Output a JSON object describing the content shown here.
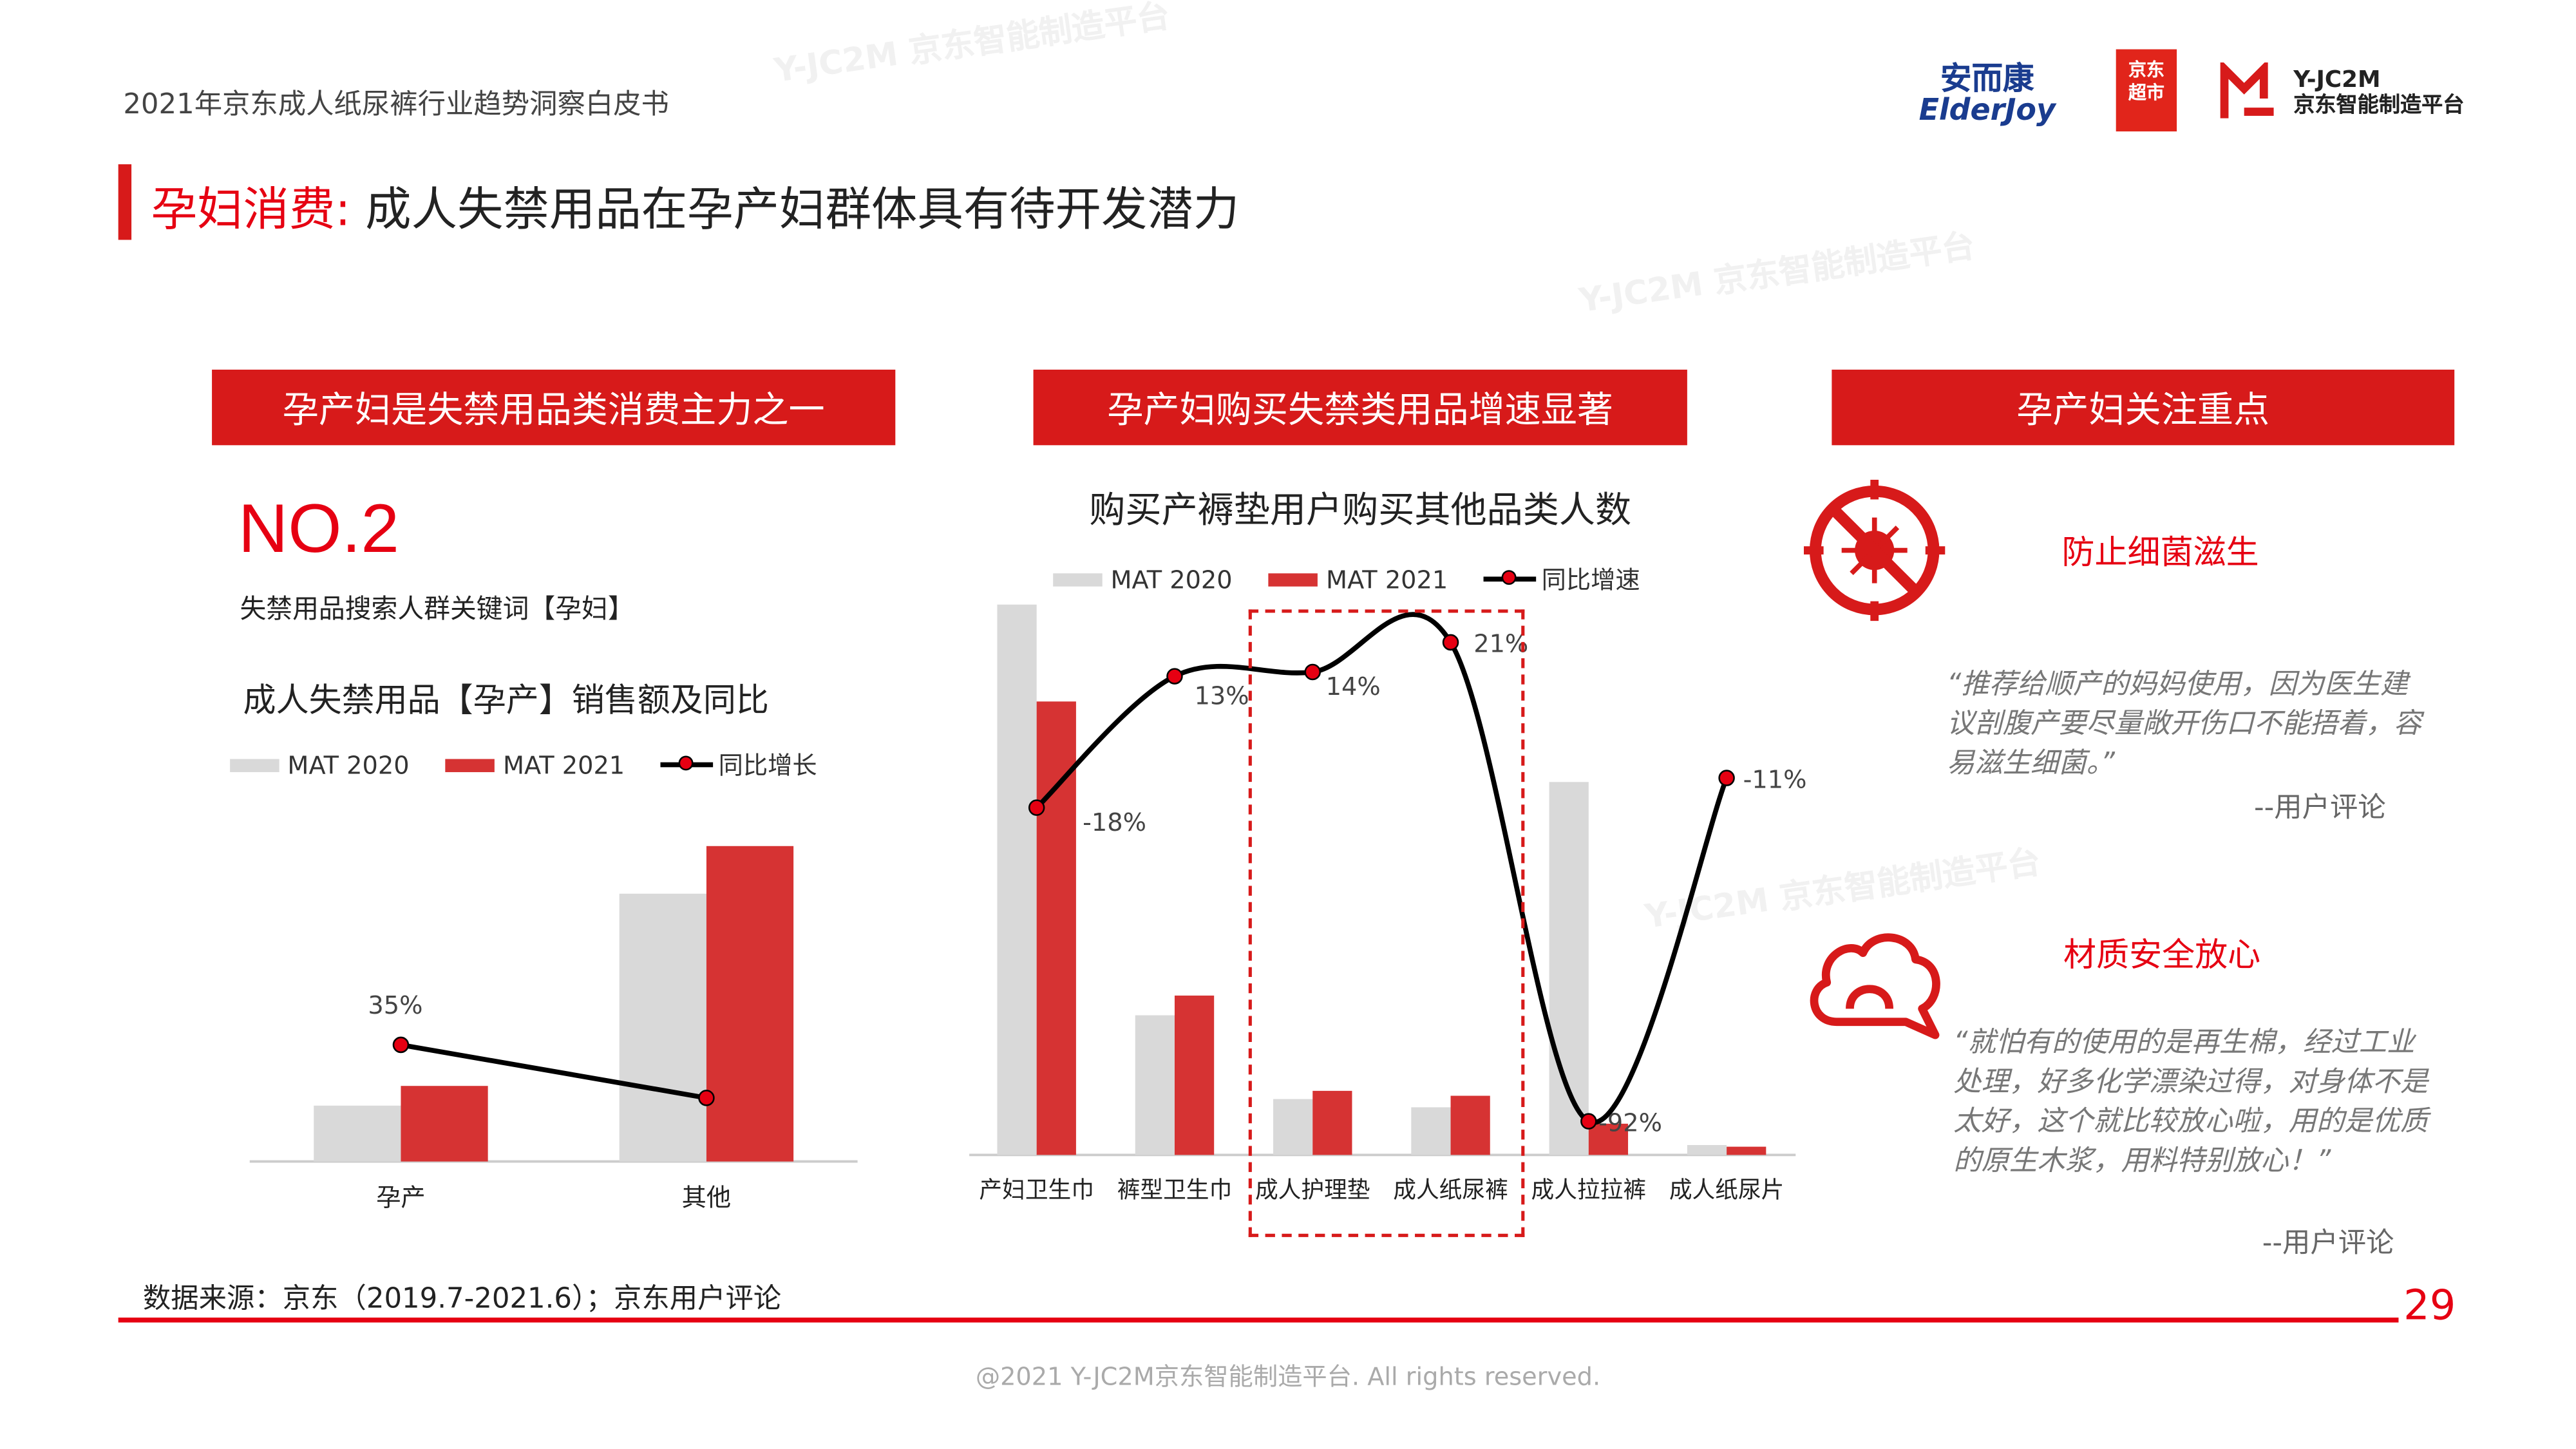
{
  "header": {
    "doc_title": "2021年京东成人纸尿裤行业趋势洞察白皮书",
    "logos": {
      "elderjoy_cn": "安而康",
      "elderjoy_en": "ElderJoy",
      "jd_market": [
        "京东",
        "超市"
      ],
      "yjc2m_en": "Y-JC2M",
      "yjc2m_cn": "京东智能制造平台"
    }
  },
  "title": {
    "highlight": "孕妇消费:",
    "rest": " 成人失禁用品在孕产妇群体具有待开发潜力"
  },
  "colors": {
    "accent": "#e60012",
    "box": "#d71a1a",
    "bar2020": "#d9d9d9",
    "bar2021": "#d63333",
    "line": "#000000"
  },
  "left": {
    "box_title": "孕产妇是失禁用品类消费主力之一",
    "rank": "NO.2",
    "rank_caption": "失禁用品搜索人群关键词【孕妇】",
    "chart_title": "成人失禁用品【孕产】销售额及同比"
  },
  "middle": {
    "box_title": "孕产妇购买失禁类用品增速显著",
    "chart_title": "购买产褥垫用户购买其他品类人数"
  },
  "right": {
    "box_title": "孕产妇关注重点",
    "items": [
      {
        "icon": "no-bacteria-icon",
        "title": "防止细菌滋生",
        "quote": "“推荐给顺产的妈妈使用，因为医生建议剖腹产要尽量敞开伤口不能捂着，容易滋生细菌。”",
        "source": "--用户评论"
      },
      {
        "icon": "cloud-cotton-icon",
        "title": "材质安全放心",
        "quote": "“就怕有的使用的是再生棉，经过工业处理，好多化学漂染过得，对身体不是太好，这个就比较放心啦，用的是优质的原生木浆，用料特别放心！”",
        "source": "--用户评论"
      }
    ]
  },
  "chart_data": [
    {
      "type": "bar",
      "categories": [
        "孕产",
        "其他"
      ],
      "series": [
        {
          "name": "MAT 2020",
          "values": [
            34,
            163
          ]
        },
        {
          "name": "MAT 2021",
          "values": [
            46,
            192
          ]
        },
        {
          "name": "同比增长",
          "type": "line",
          "values": [
            35,
            18
          ],
          "labels": [
            "35%",
            ""
          ]
        }
      ]
    },
    {
      "type": "bar",
      "categories": [
        "产妇卫生巾",
        "裤型卫生巾",
        "成人护理垫",
        "成人纸尿裤",
        "成人拉拉裤",
        "成人纸尿片"
      ],
      "series": [
        {
          "name": "MAT 2020",
          "values": [
            335,
            85,
            34,
            29,
            227,
            6
          ]
        },
        {
          "name": "MAT 2021",
          "values": [
            276,
            97,
            39,
            36,
            19,
            5
          ]
        },
        {
          "name": "同比增速",
          "type": "line",
          "values": [
            -18,
            13,
            14,
            21,
            -92,
            -11
          ],
          "labels": [
            "-18%",
            "13%",
            "14%",
            "21%",
            "-92%",
            "-11%"
          ]
        }
      ],
      "highlight_categories": [
        "成人护理垫",
        "成人纸尿裤"
      ]
    }
  ],
  "footer": {
    "source": "数据来源：京东（2019.7-2021.6）；京东用户评论",
    "page_number": "29",
    "copyright": "@2021 Y-JC2M京东智能制造平台. All rights reserved."
  }
}
